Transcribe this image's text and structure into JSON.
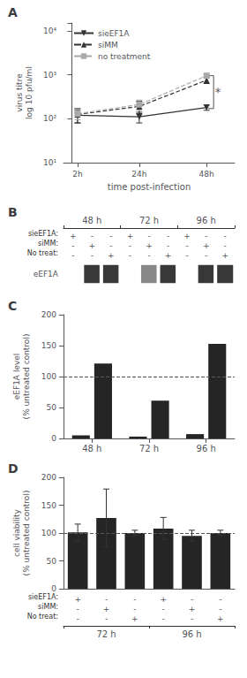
{
  "chart_data": [
    {
      "type": "line",
      "title": "A",
      "xlabel": "time post-infection",
      "ylabel": "virus titre\nlog 10 pfu/ml",
      "log": "y",
      "grid": false,
      "legend": "upper left",
      "x": [
        2,
        24,
        48
      ],
      "xlim": [
        -3,
        58
      ],
      "xticks": [
        {
          "value": 2,
          "label": "2h"
        },
        {
          "value": 24,
          "label": "24h"
        },
        {
          "value": 48,
          "label": "48h"
        }
      ],
      "ylim": [
        10,
        15000
      ],
      "yticks": [
        {
          "value": 10,
          "label": "10¹"
        },
        {
          "value": 100,
          "label": "10²"
        },
        {
          "value": 1000,
          "label": "10³"
        },
        {
          "value": 10000,
          "label": "10⁴"
        }
      ],
      "series": [
        {
          "name": "sieEF1A",
          "color": "#333333",
          "marker": "triangle_down",
          "line_style": "solid",
          "values": [
            120,
            110,
            180
          ],
          "errors": [
            40,
            30,
            25
          ]
        },
        {
          "name": "siMM",
          "color": "#333333",
          "marker": "triangle_up",
          "line_style": "dashed",
          "values": [
            125,
            190,
            750
          ],
          "errors": [
            45,
            60,
            120
          ]
        },
        {
          "name": "no treatment",
          "color": "#aaaaaa",
          "marker": "square",
          "line_style": "dashed",
          "values": [
            130,
            210,
            950
          ],
          "errors": [
            35,
            55,
            80
          ]
        }
      ],
      "annotations": [
        {
          "text": "*",
          "x": 52,
          "y": 400
        }
      ],
      "bracket": {
        "x": [
          48.5,
          50.5
        ],
        "y": [
          170,
          950
        ]
      }
    },
    {
      "type": "heatmap",
      "title": "B",
      "rows": [
        "eEF1A"
      ],
      "values": [
        [
          0,
          1,
          1,
          0,
          0.6,
          1,
          0,
          1,
          1
        ]
      ],
      "groups": [
        "48 h",
        "72 h",
        "96 h"
      ],
      "sign_rows": [
        {
          "label": "sieEF1A:",
          "signs": [
            "+",
            "-",
            "-",
            "+",
            "-",
            "-",
            "+",
            "-",
            "-"
          ]
        },
        {
          "label": "siMM:",
          "signs": [
            "-",
            "+",
            "-",
            "-",
            "+",
            "-",
            "-",
            "+",
            "-"
          ]
        },
        {
          "label": "No treat:",
          "signs": [
            "-",
            "-",
            "+",
            "-",
            "-",
            "+",
            "-",
            "-",
            "+"
          ]
        }
      ]
    },
    {
      "type": "bar",
      "title": "C",
      "ylabel": "eEF1A level\n(% untreated control)",
      "grid": false,
      "color": "#252525",
      "categories": [
        "48 h",
        "72 h",
        "96 h"
      ],
      "series": [
        {
          "values": [
            5,
            3,
            7
          ]
        },
        {
          "values": [
            121,
            61,
            153
          ]
        }
      ],
      "ylim": [
        0,
        200
      ],
      "yticks": [
        0,
        50,
        100,
        150,
        200
      ],
      "hline": 100
    },
    {
      "type": "bar",
      "title": "D",
      "ylabel": "cell viability\n(% untreated control)",
      "grid": false,
      "color": "#252525",
      "categories": [
        null,
        null,
        null,
        null,
        null,
        null
      ],
      "values": [
        101,
        127,
        100,
        108,
        95,
        100
      ],
      "errors": [
        15,
        52,
        5,
        20,
        10,
        5
      ],
      "ylim": [
        0,
        200
      ],
      "yticks": [
        0,
        50,
        100,
        150,
        200
      ],
      "hline": 100,
      "sign_rows": [
        {
          "label": "sieEF1A:",
          "signs": [
            "+",
            "-",
            "-",
            "+",
            "-",
            "-"
          ]
        },
        {
          "label": "siMM:",
          "signs": [
            "-",
            "+",
            "-",
            "-",
            "+",
            "-"
          ]
        },
        {
          "label": "No treat:",
          "signs": [
            "-",
            "-",
            "+",
            "-",
            "-",
            "+"
          ]
        }
      ],
      "groups": [
        "72 h",
        "96 h"
      ]
    }
  ]
}
